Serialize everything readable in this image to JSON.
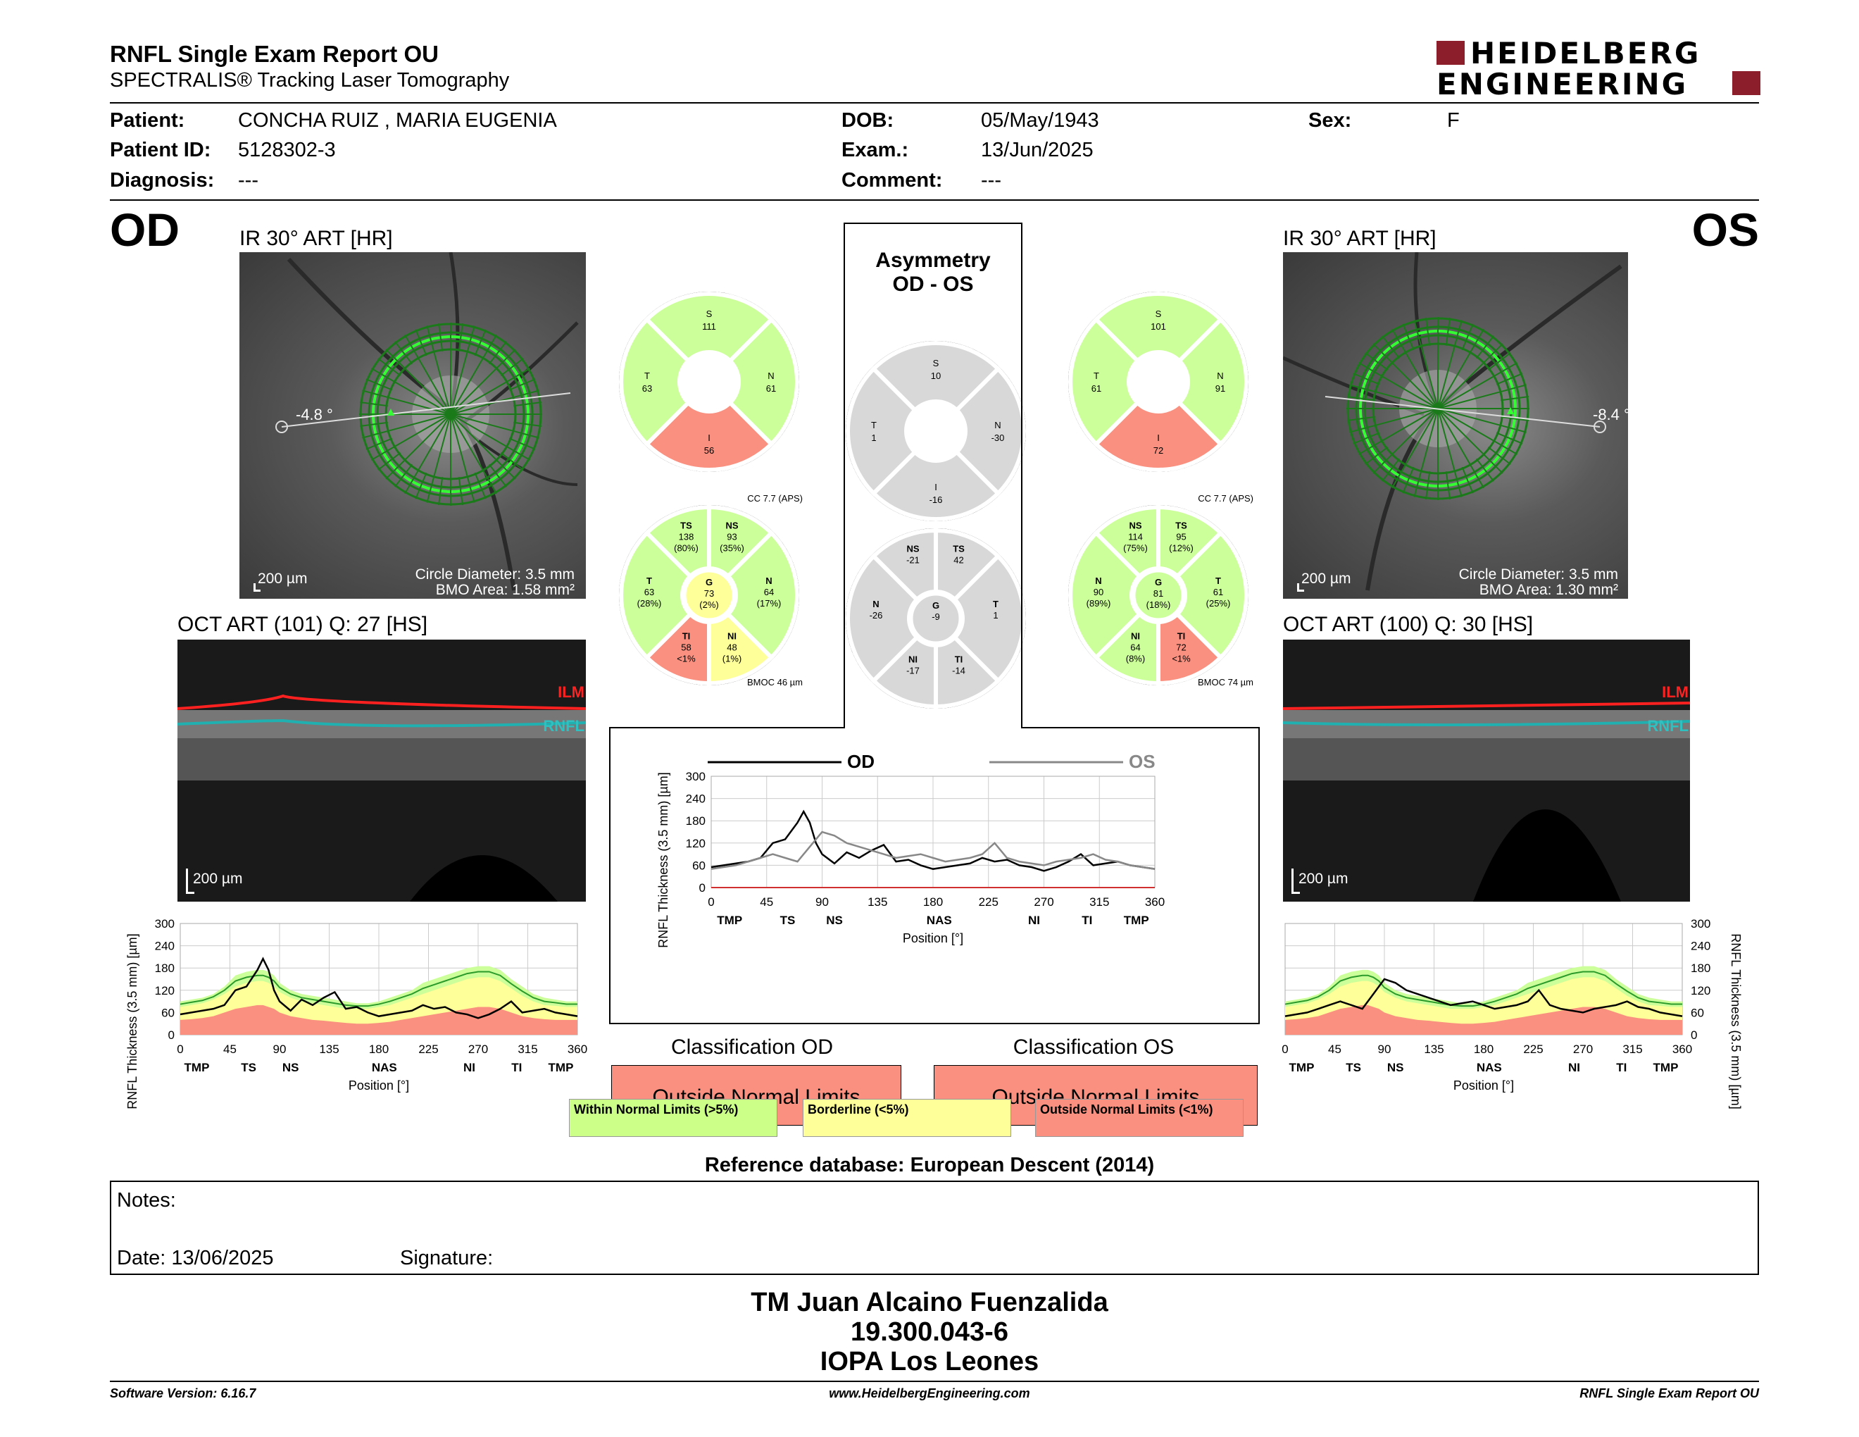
{
  "header": {
    "title": "RNFL Single Exam Report OU",
    "subtitle": "SPECTRALIS® Tracking Laser Tomography",
    "logo_line1": "HEIDELBERG",
    "logo_line2": "ENGINEERING"
  },
  "patient": {
    "patient_label": "Patient:",
    "patient_value": "CONCHA RUIZ , MARIA EUGENIA",
    "id_label": "Patient ID:",
    "id_value": "5128302-3",
    "diagnosis_label": "Diagnosis:",
    "diagnosis_value": "---",
    "dob_label": "DOB:",
    "dob_value": "05/May/1943",
    "exam_label": "Exam.:",
    "exam_value": "13/Jun/2025",
    "comment_label": "Comment:",
    "comment_value": "---",
    "sex_label": "Sex:",
    "sex_value": "F"
  },
  "od": {
    "eye": "OD",
    "ir_title": "IR 30° ART [HR]",
    "angle": "-4.8 °",
    "scale": "200 µm",
    "circle_diameter": "Circle Diameter: 3.5 mm",
    "bmo_area": "BMO Area: 1.58 mm²",
    "oct_title": "OCT ART (101) Q: 27 [HS]",
    "oct_scale": "200 µm",
    "ilm": "ILM",
    "rnfl": "RNFL",
    "sectors": {
      "S": "111",
      "N": "61",
      "I": "56",
      "T": "63"
    },
    "cc": "CC 7.7 (APS)",
    "bmoc": "BMOC 46 µm",
    "sectors6": {
      "TS": [
        "TS",
        "138",
        "(80%)"
      ],
      "NS": [
        "NS",
        "93",
        "(35%)"
      ],
      "N": [
        "N",
        "64",
        "(17%)"
      ],
      "NI": [
        "NI",
        "48",
        "(1%)"
      ],
      "TI": [
        "TI",
        "58",
        "<1%"
      ],
      "T": [
        "T",
        "63",
        "(28%)"
      ],
      "G": [
        "G",
        "73",
        "(2%)"
      ]
    }
  },
  "os": {
    "eye": "OS",
    "ir_title": "IR 30° ART [HR]",
    "angle": "-8.4 °",
    "scale": "200 µm",
    "circle_diameter": "Circle Diameter: 3.5 mm",
    "bmo_area": "BMO Area: 1.30 mm²",
    "oct_title": "OCT ART (100) Q: 30 [HS]",
    "oct_scale": "200 µm",
    "ilm": "ILM",
    "rnfl": "RNFL",
    "sectors": {
      "S": "101",
      "N": "91",
      "I": "72",
      "T": "61"
    },
    "cc": "CC 7.7 (APS)",
    "bmoc": "BMOC 74 µm",
    "sectors6": {
      "NS": [
        "NS",
        "114",
        "(75%)"
      ],
      "TS": [
        "TS",
        "95",
        "(12%)"
      ],
      "T": [
        "T",
        "61",
        "(25%)"
      ],
      "TI": [
        "TI",
        "72",
        "<1%"
      ],
      "NI": [
        "NI",
        "64",
        "(8%)"
      ],
      "N": [
        "N",
        "90",
        "(89%)"
      ],
      "G": [
        "G",
        "81",
        "(18%)"
      ]
    }
  },
  "asymmetry": {
    "title1": "Asymmetry",
    "title2": "OD - OS",
    "sectors": {
      "S": "10",
      "N": "-30",
      "T": "1",
      "I": "-16"
    },
    "sectors6": {
      "NS": [
        "NS",
        "-21"
      ],
      "TS": [
        "TS",
        "42"
      ],
      "N": [
        "N",
        "-26"
      ],
      "G": [
        "G",
        "-9"
      ],
      "T": [
        "T",
        "1"
      ],
      "NI": [
        "NI",
        "-17"
      ],
      "TI": [
        "TI",
        "-14"
      ]
    }
  },
  "colors": {
    "green": "#ccff99",
    "red": "#f99080",
    "yellow": "#ffff99",
    "grey": "#d8d8d8",
    "od_line": "#000000",
    "os_line": "#888888"
  },
  "chart_data": [
    {
      "type": "line",
      "name": "od_profile",
      "xlabel": "Position [°]",
      "ylabel": "RNFL Thickness (3.5 mm) [µm]",
      "xlim": [
        0,
        360
      ],
      "ylim": [
        0,
        300
      ],
      "xticks": [
        0,
        45,
        90,
        135,
        180,
        225,
        270,
        315,
        360
      ],
      "yticks": [
        0,
        60,
        120,
        180,
        240,
        300
      ],
      "sector_labels": [
        "TMP",
        "TS",
        "NS",
        "NAS",
        "NI",
        "TI",
        "TMP"
      ],
      "sector_positions": [
        15,
        62,
        100,
        185,
        262,
        305,
        345
      ],
      "x": [
        0,
        10,
        20,
        30,
        40,
        50,
        60,
        70,
        75,
        80,
        85,
        90,
        100,
        110,
        120,
        130,
        140,
        150,
        160,
        170,
        180,
        190,
        200,
        210,
        220,
        230,
        240,
        250,
        260,
        270,
        280,
        290,
        300,
        310,
        320,
        330,
        340,
        350,
        360
      ],
      "series": [
        {
          "name": "OD",
          "values": [
            55,
            60,
            65,
            70,
            80,
            120,
            130,
            175,
            205,
            175,
            120,
            90,
            65,
            95,
            80,
            100,
            115,
            70,
            75,
            60,
            50,
            55,
            60,
            65,
            80,
            70,
            75,
            60,
            55,
            45,
            55,
            70,
            90,
            60,
            65,
            70,
            60,
            55,
            50
          ]
        }
      ],
      "normal_upper": [
        90,
        95,
        100,
        110,
        130,
        160,
        170,
        175,
        175,
        170,
        160,
        140,
        120,
        110,
        105,
        100,
        95,
        90,
        85,
        85,
        90,
        100,
        110,
        120,
        140,
        150,
        160,
        170,
        180,
        185,
        185,
        175,
        150,
        130,
        110,
        100,
        95,
        90,
        90
      ],
      "borderline_upper": [
        75,
        80,
        85,
        95,
        110,
        130,
        140,
        145,
        145,
        140,
        130,
        115,
        100,
        90,
        85,
        80,
        75,
        70,
        70,
        70,
        75,
        80,
        90,
        100,
        110,
        120,
        130,
        140,
        150,
        155,
        155,
        145,
        125,
        105,
        90,
        80,
        78,
        75,
        75
      ],
      "normal_lower": [
        40,
        42,
        45,
        50,
        60,
        70,
        75,
        80,
        80,
        75,
        70,
        60,
        50,
        45,
        40,
        38,
        35,
        32,
        30,
        30,
        32,
        35,
        40,
        45,
        50,
        55,
        60,
        65,
        70,
        75,
        75,
        70,
        60,
        50,
        45,
        42,
        40,
        40,
        40
      ]
    },
    {
      "type": "line",
      "name": "compare",
      "xlabel": "Position [°]",
      "ylabel": "RNFL Thickness (3.5 mm) [µm]",
      "xlim": [
        0,
        360
      ],
      "ylim": [
        0,
        300
      ],
      "xticks": [
        0,
        45,
        90,
        135,
        180,
        225,
        270,
        315,
        360
      ],
      "yticks": [
        0,
        60,
        120,
        180,
        240,
        300
      ],
      "sector_labels": [
        "TMP",
        "TS",
        "NS",
        "NAS",
        "NI",
        "TI",
        "TMP"
      ],
      "sector_positions": [
        15,
        62,
        100,
        185,
        262,
        305,
        345
      ],
      "legend": [
        "OD",
        "OS"
      ],
      "x": [
        0,
        10,
        20,
        30,
        40,
        50,
        60,
        70,
        75,
        80,
        85,
        90,
        100,
        110,
        120,
        130,
        140,
        150,
        160,
        170,
        180,
        190,
        200,
        210,
        220,
        230,
        240,
        250,
        260,
        270,
        280,
        290,
        300,
        310,
        320,
        330,
        340,
        350,
        360
      ],
      "series": [
        {
          "name": "OD",
          "values": [
            55,
            60,
            65,
            70,
            80,
            120,
            130,
            175,
            205,
            175,
            120,
            90,
            65,
            95,
            80,
            100,
            115,
            70,
            75,
            60,
            50,
            55,
            60,
            65,
            80,
            70,
            75,
            60,
            55,
            45,
            55,
            70,
            90,
            60,
            65,
            70,
            60,
            55,
            50
          ]
        },
        {
          "name": "OS",
          "values": [
            50,
            55,
            60,
            70,
            80,
            90,
            80,
            70,
            90,
            110,
            130,
            150,
            140,
            120,
            110,
            100,
            90,
            80,
            85,
            90,
            80,
            70,
            75,
            80,
            90,
            120,
            80,
            70,
            65,
            60,
            70,
            75,
            80,
            90,
            75,
            70,
            60,
            55,
            50
          ]
        }
      ]
    },
    {
      "type": "line",
      "name": "os_profile",
      "xlabel": "Position [°]",
      "ylabel": "RNFL Thickness (3.5 mm) [µm]",
      "xlim": [
        0,
        360
      ],
      "ylim": [
        0,
        300
      ],
      "xticks": [
        0,
        45,
        90,
        135,
        180,
        225,
        270,
        315,
        360
      ],
      "yticks": [
        0,
        60,
        120,
        180,
        240,
        300
      ],
      "sector_labels": [
        "TMP",
        "TS",
        "NS",
        "NAS",
        "NI",
        "TI",
        "TMP"
      ],
      "sector_positions": [
        15,
        62,
        100,
        185,
        262,
        305,
        345
      ],
      "x": [
        0,
        10,
        20,
        30,
        40,
        50,
        60,
        70,
        75,
        80,
        85,
        90,
        100,
        110,
        120,
        130,
        140,
        150,
        160,
        170,
        180,
        190,
        200,
        210,
        220,
        230,
        240,
        250,
        260,
        270,
        280,
        290,
        300,
        310,
        320,
        330,
        340,
        350,
        360
      ],
      "series": [
        {
          "name": "OS",
          "values": [
            50,
            55,
            60,
            70,
            80,
            90,
            80,
            70,
            90,
            110,
            130,
            150,
            140,
            120,
            110,
            100,
            90,
            80,
            85,
            90,
            80,
            70,
            75,
            80,
            90,
            120,
            80,
            70,
            65,
            60,
            70,
            75,
            80,
            90,
            75,
            70,
            60,
            55,
            50
          ]
        }
      ],
      "normal_upper": [
        90,
        95,
        100,
        110,
        130,
        160,
        170,
        175,
        175,
        170,
        160,
        140,
        120,
        110,
        105,
        100,
        95,
        90,
        85,
        85,
        90,
        100,
        110,
        120,
        140,
        150,
        160,
        170,
        180,
        185,
        185,
        175,
        150,
        130,
        110,
        100,
        95,
        90,
        90
      ],
      "borderline_upper": [
        75,
        80,
        85,
        95,
        110,
        130,
        140,
        145,
        145,
        140,
        130,
        115,
        100,
        90,
        85,
        80,
        75,
        70,
        70,
        70,
        75,
        80,
        90,
        100,
        110,
        120,
        130,
        140,
        150,
        155,
        155,
        145,
        125,
        105,
        90,
        80,
        78,
        75,
        75
      ],
      "normal_lower": [
        40,
        42,
        45,
        50,
        60,
        70,
        75,
        80,
        80,
        75,
        70,
        60,
        50,
        45,
        40,
        38,
        35,
        32,
        30,
        30,
        32,
        35,
        40,
        45,
        50,
        55,
        60,
        65,
        70,
        75,
        75,
        70,
        60,
        50,
        45,
        42,
        40,
        40,
        40
      ]
    }
  ],
  "classification": {
    "od_title": "Classification OD",
    "os_title": "Classification OS",
    "od_value": "Outside Normal Limits",
    "os_value": "Outside Normal Limits",
    "legend_green": "Within Normal Limits (>5%)",
    "legend_yellow": "Borderline (<5%)",
    "legend_red": "Outside Normal Limits (<1%)"
  },
  "reference": "Reference database: European Descent (2014)",
  "notes": {
    "label": "Notes:",
    "date_label": "Date: 13/06/2025",
    "signature_label": "Signature:"
  },
  "signature": {
    "line1": "TM Juan Alcaino Fuenzalida",
    "line2": "19.300.043-6",
    "line3": "IOPA Los Leones"
  },
  "footer": {
    "left": "Software Version: 6.16.7",
    "center": "www.HeidelbergEngineering.com",
    "right": "RNFL Single Exam Report OU"
  },
  "chart_titles": {
    "od": "OD",
    "os": "OS"
  }
}
